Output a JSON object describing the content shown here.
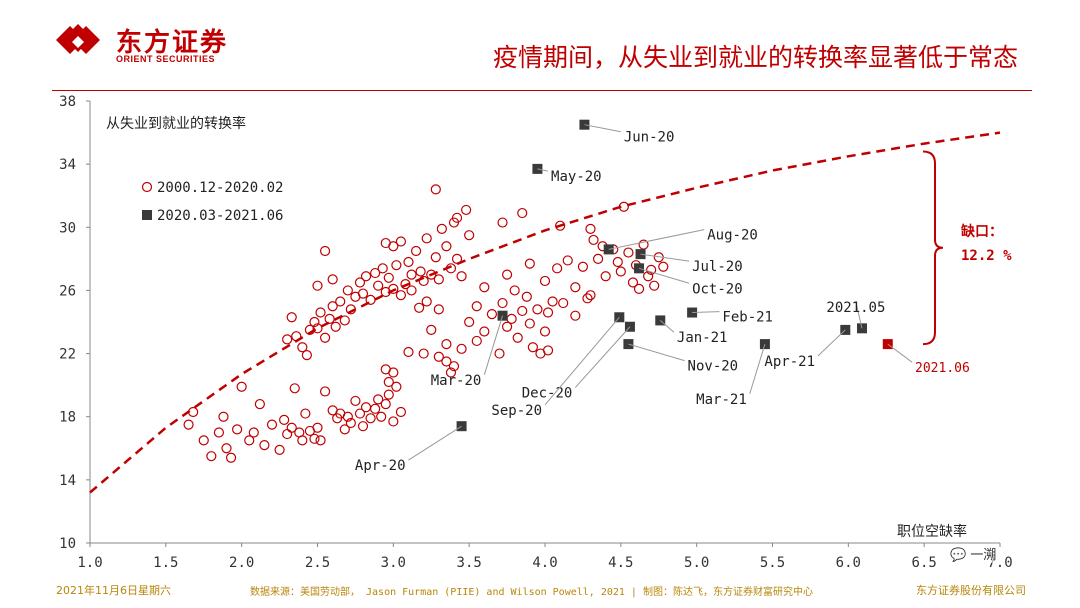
{
  "header": {
    "logo_cn": "东方证券",
    "logo_en": "ORIENT SECURITIES",
    "headline": "疫情期间，从失业到就业的转换率显著低于常态"
  },
  "footer": {
    "date": "2021年11月6日星期六",
    "source": "数据来源：美国劳动部， Jason Furman (PIIE) and Wilson Powell, 2021 | 制图：陈达飞，东方证券财富研究中心",
    "company": "东方证券股份有限公司"
  },
  "watermark": "一溯",
  "colors": {
    "accent": "#c00000",
    "dark_marker": "#3a3a3a",
    "footer_text": "#b8860b"
  },
  "chart_data": {
    "type": "scatter",
    "ylabel": "从失业到就业的转换率",
    "xlabel": "职位空缺率",
    "xlim": [
      1.0,
      7.0
    ],
    "ylim": [
      10,
      38
    ],
    "xticks": [
      "1.0",
      "1.5",
      "2.0",
      "2.5",
      "3.0",
      "3.5",
      "4.0",
      "4.5",
      "5.0",
      "5.5",
      "6.0",
      "6.5",
      "7.0"
    ],
    "yticks": [
      "10",
      "14",
      "18",
      "22",
      "26",
      "30",
      "34",
      "38"
    ],
    "legend": [
      {
        "label": "2000.12-2020.02",
        "marker": "open-circle",
        "color": "#c00000"
      },
      {
        "label": "2020.03-2021.06",
        "marker": "filled-square",
        "color": "#3a3a3a"
      }
    ],
    "trend_line": {
      "style": "dashed",
      "color": "#c00000",
      "x": [
        1.0,
        1.5,
        2.0,
        2.5,
        3.0,
        3.5,
        4.0,
        4.5,
        5.0,
        5.5,
        6.0,
        6.5,
        7.0
      ],
      "y": [
        13.2,
        17.3,
        20.7,
        23.6,
        26.0,
        28.0,
        29.8,
        31.3,
        32.5,
        33.6,
        34.5,
        35.3,
        36.0
      ]
    },
    "gap_annotation": {
      "label_line1": "缺口：",
      "label_line2": "12.2 %",
      "x": 6.4,
      "y_low": 22.6,
      "y_high": 34.8
    },
    "series": [
      {
        "name": "2000.12-2020.02",
        "points": [
          [
            1.65,
            17.5
          ],
          [
            1.68,
            18.3
          ],
          [
            1.75,
            16.5
          ],
          [
            1.8,
            15.5
          ],
          [
            1.85,
            17.0
          ],
          [
            1.88,
            18.0
          ],
          [
            1.9,
            16.0
          ],
          [
            1.93,
            15.4
          ],
          [
            1.97,
            17.2
          ],
          [
            2.0,
            19.9
          ],
          [
            2.05,
            16.5
          ],
          [
            2.08,
            17.0
          ],
          [
            2.12,
            18.8
          ],
          [
            2.15,
            16.2
          ],
          [
            2.2,
            17.5
          ],
          [
            2.25,
            15.9
          ],
          [
            2.28,
            17.8
          ],
          [
            2.3,
            16.9
          ],
          [
            2.33,
            17.3
          ],
          [
            2.35,
            19.8
          ],
          [
            2.38,
            17.0
          ],
          [
            2.4,
            16.5
          ],
          [
            2.42,
            18.2
          ],
          [
            2.45,
            17.1
          ],
          [
            2.48,
            16.6
          ],
          [
            2.5,
            17.3
          ],
          [
            2.52,
            16.5
          ],
          [
            2.55,
            19.6
          ],
          [
            2.6,
            18.4
          ],
          [
            2.63,
            17.9
          ],
          [
            2.65,
            18.2
          ],
          [
            2.68,
            17.2
          ],
          [
            2.7,
            18.0
          ],
          [
            2.72,
            17.6
          ],
          [
            2.75,
            19.0
          ],
          [
            2.78,
            18.2
          ],
          [
            2.8,
            17.4
          ],
          [
            2.82,
            18.6
          ],
          [
            2.85,
            17.9
          ],
          [
            2.88,
            18.5
          ],
          [
            2.9,
            19.1
          ],
          [
            2.92,
            18.0
          ],
          [
            2.95,
            18.8
          ],
          [
            2.97,
            19.4
          ],
          [
            3.0,
            17.7
          ],
          [
            3.02,
            19.9
          ],
          [
            3.05,
            18.3
          ],
          [
            2.97,
            20.2
          ],
          [
            3.0,
            20.8
          ],
          [
            2.95,
            21.0
          ],
          [
            2.3,
            22.9
          ],
          [
            2.33,
            24.3
          ],
          [
            2.36,
            23.1
          ],
          [
            2.4,
            22.4
          ],
          [
            2.43,
            21.9
          ],
          [
            2.45,
            23.5
          ],
          [
            2.48,
            24.0
          ],
          [
            2.5,
            23.6
          ],
          [
            2.52,
            24.6
          ],
          [
            2.55,
            23.0
          ],
          [
            2.58,
            24.2
          ],
          [
            2.6,
            25.0
          ],
          [
            2.62,
            23.7
          ],
          [
            2.65,
            25.3
          ],
          [
            2.68,
            24.1
          ],
          [
            2.7,
            26.0
          ],
          [
            2.72,
            24.8
          ],
          [
            2.75,
            25.6
          ],
          [
            2.78,
            26.5
          ],
          [
            2.8,
            25.8
          ],
          [
            2.82,
            26.9
          ],
          [
            2.85,
            25.4
          ],
          [
            2.88,
            27.1
          ],
          [
            2.9,
            26.3
          ],
          [
            2.93,
            27.4
          ],
          [
            2.95,
            25.9
          ],
          [
            2.97,
            26.8
          ],
          [
            3.0,
            26.1
          ],
          [
            3.02,
            27.6
          ],
          [
            3.05,
            25.7
          ],
          [
            3.08,
            26.4
          ],
          [
            3.1,
            27.8
          ],
          [
            3.12,
            26.0
          ],
          [
            3.15,
            28.5
          ],
          [
            3.18,
            27.2
          ],
          [
            3.2,
            26.6
          ],
          [
            3.22,
            29.3
          ],
          [
            3.25,
            27.0
          ],
          [
            3.28,
            28.1
          ],
          [
            3.3,
            26.7
          ],
          [
            3.32,
            29.9
          ],
          [
            3.35,
            28.8
          ],
          [
            3.38,
            27.4
          ],
          [
            3.4,
            30.3
          ],
          [
            3.42,
            28.0
          ],
          [
            3.45,
            26.9
          ],
          [
            3.48,
            31.1
          ],
          [
            3.5,
            29.5
          ],
          [
            2.95,
            29.0
          ],
          [
            3.0,
            28.8
          ],
          [
            3.05,
            29.1
          ],
          [
            2.55,
            28.5
          ],
          [
            2.6,
            26.7
          ],
          [
            3.1,
            22.1
          ],
          [
            3.2,
            22.0
          ],
          [
            3.25,
            23.5
          ],
          [
            3.3,
            24.8
          ],
          [
            3.35,
            22.6
          ],
          [
            3.4,
            21.2
          ],
          [
            3.45,
            22.3
          ],
          [
            3.5,
            24.0
          ],
          [
            3.55,
            22.8
          ],
          [
            3.6,
            23.4
          ],
          [
            3.65,
            24.5
          ],
          [
            3.7,
            22.0
          ],
          [
            3.72,
            25.2
          ],
          [
            3.75,
            23.7
          ],
          [
            3.78,
            24.2
          ],
          [
            3.8,
            26.0
          ],
          [
            3.82,
            23.0
          ],
          [
            3.85,
            24.7
          ],
          [
            3.88,
            25.6
          ],
          [
            3.9,
            23.9
          ],
          [
            3.92,
            22.4
          ],
          [
            3.95,
            24.8
          ],
          [
            3.97,
            22.0
          ],
          [
            4.0,
            23.4
          ],
          [
            4.02,
            24.6
          ],
          [
            4.05,
            25.3
          ],
          [
            3.72,
            30.3
          ],
          [
            3.85,
            30.9
          ],
          [
            4.1,
            30.1
          ],
          [
            4.3,
            29.9
          ],
          [
            4.52,
            31.3
          ],
          [
            3.75,
            27.0
          ],
          [
            3.9,
            27.7
          ],
          [
            4.0,
            26.6
          ],
          [
            4.08,
            27.4
          ],
          [
            4.15,
            27.9
          ],
          [
            4.2,
            26.2
          ],
          [
            4.25,
            27.5
          ],
          [
            4.3,
            25.7
          ],
          [
            4.35,
            28.0
          ],
          [
            4.4,
            26.9
          ],
          [
            4.45,
            28.6
          ],
          [
            4.5,
            27.2
          ],
          [
            4.55,
            28.4
          ],
          [
            4.6,
            27.6
          ],
          [
            4.65,
            28.9
          ],
          [
            4.7,
            27.3
          ],
          [
            4.75,
            28.1
          ],
          [
            4.48,
            27.8
          ],
          [
            4.58,
            26.5
          ],
          [
            4.62,
            26.1
          ],
          [
            4.68,
            26.9
          ],
          [
            4.72,
            26.3
          ],
          [
            4.78,
            27.5
          ],
          [
            4.12,
            25.2
          ],
          [
            4.2,
            24.4
          ],
          [
            4.28,
            25.5
          ],
          [
            4.32,
            29.2
          ],
          [
            4.38,
            28.8
          ],
          [
            3.55,
            25.0
          ],
          [
            3.6,
            26.2
          ],
          [
            3.28,
            32.4
          ],
          [
            3.42,
            30.6
          ],
          [
            3.22,
            25.3
          ],
          [
            3.3,
            21.8
          ],
          [
            3.35,
            21.5
          ],
          [
            3.38,
            20.8
          ],
          [
            4.02,
            22.2
          ],
          [
            3.12,
            27.0
          ],
          [
            3.17,
            24.9
          ],
          [
            2.5,
            26.3
          ]
        ]
      },
      {
        "name": "2020.03-2021.06",
        "points": [
          {
            "x": 3.45,
            "y": 17.4,
            "label": "Apr-20"
          },
          {
            "x": 3.95,
            "y": 33.7,
            "label": "May-20"
          },
          {
            "x": 4.26,
            "y": 36.5,
            "label": "Jun-20"
          },
          {
            "x": 4.63,
            "y": 28.3,
            "label": "Jul-20"
          },
          {
            "x": 4.42,
            "y": 28.6,
            "label": "Aug-20"
          },
          {
            "x": 4.49,
            "y": 24.3,
            "label": "Sep-20"
          },
          {
            "x": 4.62,
            "y": 27.4,
            "label": "Oct-20"
          },
          {
            "x": 4.55,
            "y": 22.6,
            "label": "Nov-20"
          },
          {
            "x": 4.56,
            "y": 23.7,
            "label": "Dec-20"
          },
          {
            "x": 4.76,
            "y": 24.1,
            "label": "Jan-21"
          },
          {
            "x": 4.97,
            "y": 24.6,
            "label": "Feb-21"
          },
          {
            "x": 5.45,
            "y": 22.6,
            "label": "Mar-21"
          },
          {
            "x": 5.98,
            "y": 23.5,
            "label": "Apr-21"
          },
          {
            "x": 6.09,
            "y": 23.6,
            "label": "2021.05"
          },
          {
            "x": 6.26,
            "y": 22.6,
            "label": "2021.06",
            "highlight": true
          }
        ]
      }
    ],
    "point_labels": [
      {
        "ref": "Apr-20",
        "text": "Apr-20",
        "lx": 3.1,
        "ly": 15.0
      },
      {
        "ref": "May-20",
        "text": "May-20",
        "lx": 4.02,
        "ly": 33.3
      },
      {
        "ref": "Jun-20",
        "text": "Jun-20",
        "lx": 4.5,
        "ly": 35.8
      },
      {
        "ref": "Jul-20",
        "text": "Jul-20",
        "lx": 4.95,
        "ly": 27.6
      },
      {
        "ref": "Aug-20",
        "text": "Aug-20",
        "lx": 5.05,
        "ly": 29.6
      },
      {
        "ref": "Oct-20",
        "text": "Oct-20",
        "lx": 4.95,
        "ly": 26.2
      },
      {
        "ref": "Jan-21",
        "text": "Jan-21",
        "lx": 4.85,
        "ly": 23.1
      },
      {
        "ref": "Feb-21",
        "text": "Feb-21",
        "lx": 5.15,
        "ly": 24.4
      },
      {
        "ref": "Nov-20",
        "text": "Nov-20",
        "lx": 4.92,
        "ly": 21.3
      },
      {
        "ref": "Mar-20",
        "text": "Mar-20",
        "lx": 3.6,
        "ly": 20.4
      },
      {
        "ref": "Dec-20",
        "text": "Dec-20",
        "lx": 4.2,
        "ly": 19.6
      },
      {
        "ref": "Sep-20",
        "text": "Sep-20",
        "lx": 4.0,
        "ly": 18.5
      },
      {
        "ref": "Mar-21",
        "text": "Mar-21",
        "lx": 5.35,
        "ly": 19.2
      },
      {
        "ref": "Apr-21",
        "text": "Apr-21",
        "lx": 5.8,
        "ly": 21.6
      },
      {
        "ref": "2021.05",
        "text": "2021.05",
        "lx": 6.05,
        "ly": 25.0
      },
      {
        "ref": "2021.06",
        "text": "2021.06",
        "lx": 6.42,
        "ly": 21.2
      }
    ],
    "extra_square": {
      "x": 3.72,
      "y": 24.4,
      "label": "Mar-20"
    }
  }
}
